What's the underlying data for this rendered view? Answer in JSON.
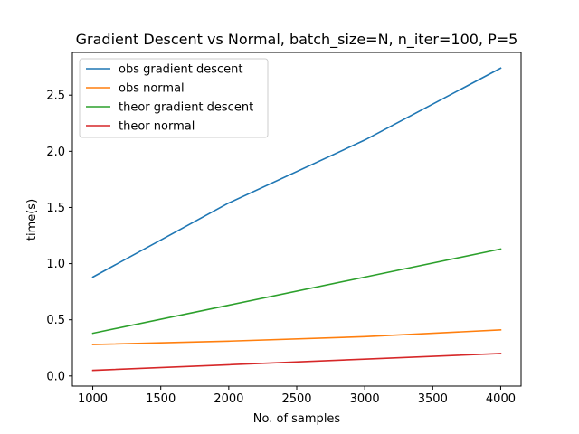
{
  "chart_data": {
    "type": "line",
    "title": "Gradient Descent vs Normal, batch_size=N, n_iter=100, P=5",
    "xlabel": "No. of samples",
    "ylabel": "time(s)",
    "x": [
      1000,
      2000,
      3000,
      4000
    ],
    "xticks": [
      1000,
      1500,
      2000,
      2500,
      3000,
      3500,
      4000
    ],
    "xtick_labels": [
      "1000",
      "1500",
      "2000",
      "2500",
      "3000",
      "3500",
      "4000"
    ],
    "yticks": [
      0.0,
      0.5,
      1.0,
      1.5,
      2.0,
      2.5
    ],
    "ytick_labels": [
      "0.0",
      "0.5",
      "1.0",
      "1.5",
      "2.0",
      "2.5"
    ],
    "xlim": [
      850,
      4150
    ],
    "ylim": [
      -0.09,
      2.88
    ],
    "grid": false,
    "legend_position": "top-left",
    "series": [
      {
        "name": "obs gradient descent",
        "color": "#1f77b4",
        "values": [
          0.88,
          1.54,
          2.1,
          2.74
        ]
      },
      {
        "name": "obs normal",
        "color": "#ff7f0e",
        "values": [
          0.28,
          0.31,
          0.35,
          0.41
        ]
      },
      {
        "name": "theor gradient descent",
        "color": "#2ca02c",
        "values": [
          0.38,
          0.63,
          0.88,
          1.13
        ]
      },
      {
        "name": "theor normal",
        "color": "#d62728",
        "values": [
          0.05,
          0.1,
          0.15,
          0.2
        ]
      }
    ]
  }
}
